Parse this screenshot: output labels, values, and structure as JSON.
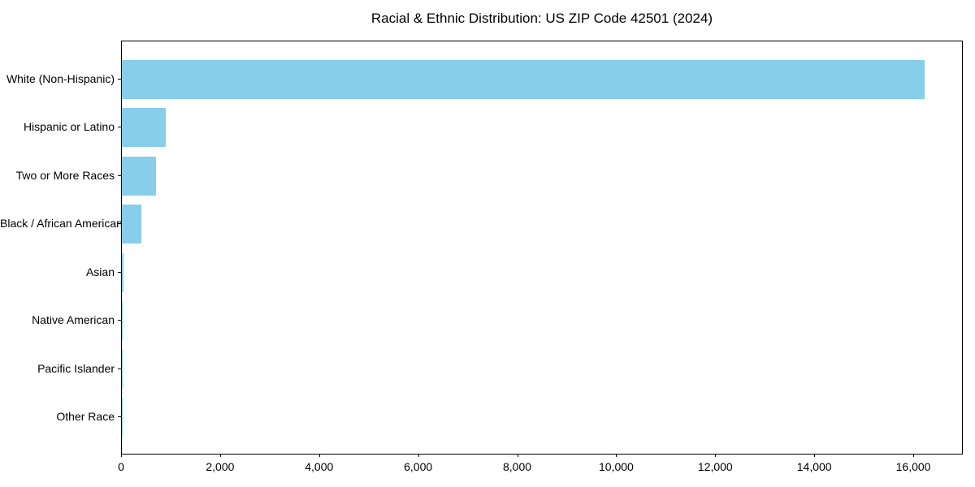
{
  "chart_data": {
    "type": "bar",
    "orientation": "horizontal",
    "title": "Racial & Ethnic Distribution: US ZIP Code 42501 (2024)",
    "categories": [
      "White (Non-Hispanic)",
      "Hispanic or Latino",
      "Two or More Races",
      "Black / African American",
      "Asian",
      "Native American",
      "Pacific Islander",
      "Other Race"
    ],
    "values": [
      16220,
      885,
      695,
      390,
      25,
      10,
      4,
      6
    ],
    "xlabel": "",
    "ylabel": "",
    "xlim": [
      0,
      17000
    ],
    "xticks": {
      "values": [
        0,
        2000,
        4000,
        6000,
        8000,
        10000,
        12000,
        14000,
        16000
      ],
      "labels": [
        "0",
        "2,000",
        "4,000",
        "6,000",
        "8,000",
        "10,000",
        "12,000",
        "14,000",
        "16,000"
      ]
    },
    "grid": false,
    "legend_position": "none",
    "colors": {
      "bar": "#87CEEB",
      "axis": "#000000",
      "text": "#000000",
      "background": "#ffffff"
    }
  }
}
